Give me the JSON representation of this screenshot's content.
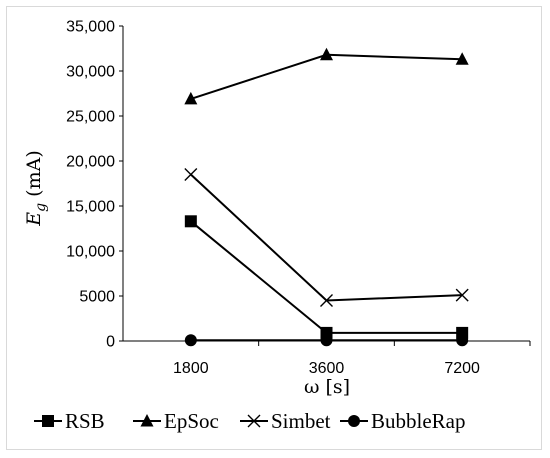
{
  "chart_data": {
    "type": "line",
    "categories": [
      "1800",
      "3600",
      "7200"
    ],
    "xlabel": "ω [s]",
    "ylabel": {
      "base": "E",
      "sub": "g",
      "unit": " (mA)"
    },
    "ylim": [
      0,
      35000
    ],
    "yticks": [
      {
        "value": 0,
        "label": "0"
      },
      {
        "value": 5000,
        "label": "5000"
      },
      {
        "value": 10000,
        "label": "10,000"
      },
      {
        "value": 15000,
        "label": "15,000"
      },
      {
        "value": 20000,
        "label": "20,000"
      },
      {
        "value": 25000,
        "label": "25,000"
      },
      {
        "value": 30000,
        "label": "30,000"
      },
      {
        "value": 35000,
        "label": "35,000"
      }
    ],
    "grid": false,
    "legend_position": "bottom",
    "series": [
      {
        "name": "RSB",
        "marker": "square",
        "values": [
          13300,
          900,
          900
        ]
      },
      {
        "name": "EpSoc",
        "marker": "triangle",
        "values": [
          26900,
          31800,
          31300
        ]
      },
      {
        "name": "Simbet",
        "marker": "x",
        "values": [
          18500,
          4500,
          5100
        ]
      },
      {
        "name": "BubbleRap",
        "marker": "circle",
        "values": [
          80,
          80,
          80
        ]
      }
    ],
    "colors": {
      "line": "#000000",
      "axis": "#000000"
    }
  }
}
